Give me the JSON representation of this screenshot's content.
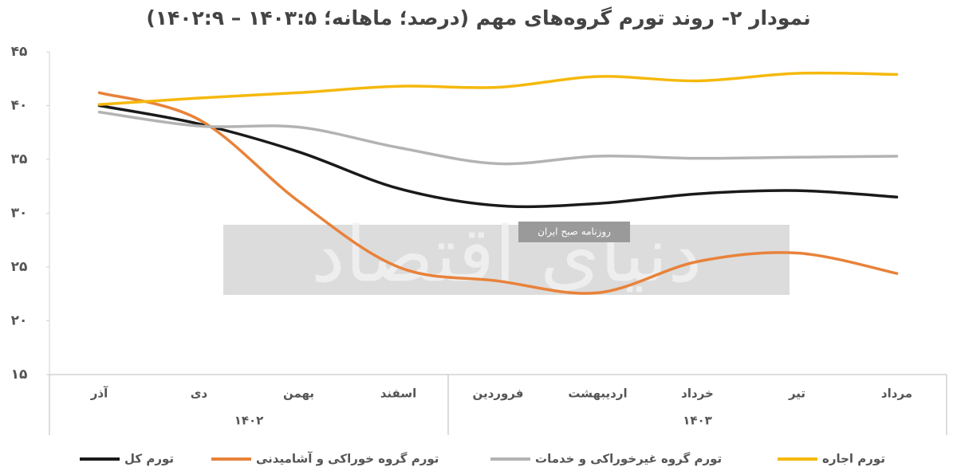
{
  "chart_data": {
    "type": "line",
    "title": "نمودار ۲- روند تورم گروه‌های مهم (درصد؛ ماهانه؛ ۱۴۰۳:۵ – ۱۴۰۲:۹)",
    "categories": [
      "آذر",
      "دی",
      "بهمن",
      "اسفند",
      "فروردین",
      "اردیبهشت",
      "خرداد",
      "تیر",
      "مرداد"
    ],
    "groups": [
      "۱۴۰۲",
      "۱۴۰۳"
    ],
    "ylim": [
      15,
      45
    ],
    "yticks": [
      {
        "value": 15,
        "label": "۱۵"
      },
      {
        "value": 20,
        "label": "۲۰"
      },
      {
        "value": 25,
        "label": "۲۵"
      },
      {
        "value": 30,
        "label": "۳۰"
      },
      {
        "value": 35,
        "label": "۳۵"
      },
      {
        "value": 40,
        "label": "۴۰"
      },
      {
        "value": 45,
        "label": "۴۵"
      }
    ],
    "grid": false,
    "legend": "bottom",
    "series": [
      {
        "name": "تورم کل",
        "color": "#1a1a1a",
        "values": [
          40.0,
          38.3,
          35.7,
          32.3,
          30.7,
          30.9,
          31.8,
          32.1,
          31.5
        ]
      },
      {
        "name": "تورم گروه خوراکی و آشامیدنی",
        "color": "#e8823a",
        "values": [
          41.2,
          38.7,
          31.1,
          25.0,
          23.7,
          22.6,
          25.5,
          26.3,
          24.4
        ]
      },
      {
        "name": "تورم گروه غیرخوراکی و خدمات",
        "color": "#b3b3b3",
        "values": [
          39.4,
          38.1,
          38.0,
          36.1,
          34.6,
          35.3,
          35.1,
          35.2,
          35.3
        ]
      },
      {
        "name": "تورم اجاره",
        "color": "#f5b80c",
        "values": [
          40.1,
          40.7,
          41.2,
          41.8,
          41.7,
          42.7,
          42.3,
          43.0,
          42.9
        ]
      }
    ],
    "watermark": {
      "brand": "دنیای اقتصاد",
      "tagline": "روزنامه صبح ایران"
    }
  }
}
